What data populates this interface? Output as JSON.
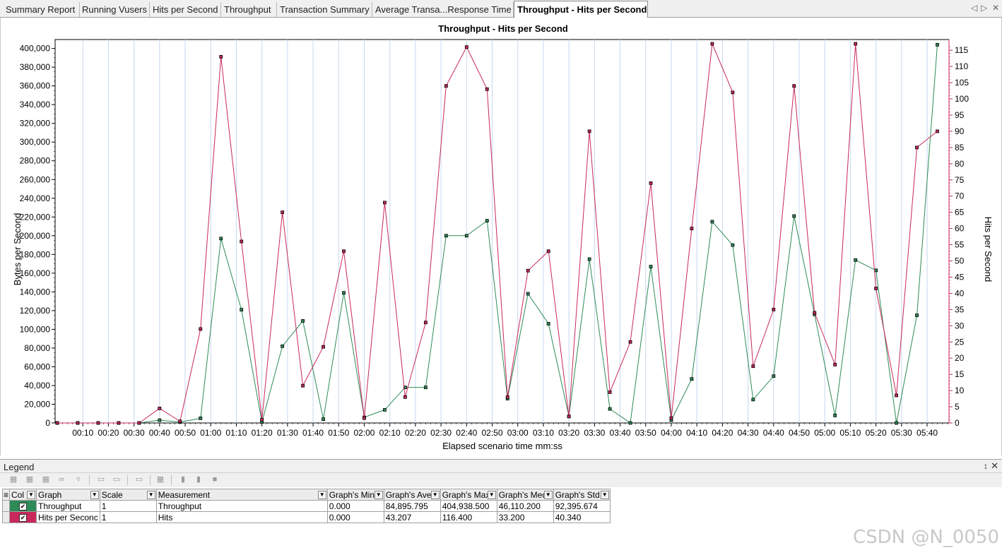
{
  "tabs": [
    {
      "label": "Summary Report"
    },
    {
      "label": "Running Vusers"
    },
    {
      "label": "Hits per Second"
    },
    {
      "label": "Throughput"
    },
    {
      "label": "Transaction Summary"
    },
    {
      "label": "Average Transa...Response Time"
    },
    {
      "label": "Throughput - Hits per Second",
      "active": true
    }
  ],
  "chart_data": {
    "type": "line",
    "title": "Throughput - Hits per Second",
    "xlabel": "Elapsed scenario time mm:ss",
    "ylabel": "Bytes per Second",
    "y2label": "Hits per Second",
    "ylim": [
      0,
      405000
    ],
    "y2lim": [
      0,
      117
    ],
    "x_ticks": [
      "00:10",
      "00:20",
      "00:30",
      "00:40",
      "00:50",
      "01:00",
      "01:10",
      "01:20",
      "01:30",
      "01:40",
      "01:50",
      "02:00",
      "02:10",
      "02:20",
      "02:30",
      "02:40",
      "02:50",
      "03:00",
      "03:10",
      "03:20",
      "03:30",
      "03:40",
      "03:50",
      "04:00",
      "04:10",
      "04:20",
      "04:30",
      "04:40",
      "04:50",
      "05:00",
      "05:10",
      "05:20",
      "05:30",
      "05:40"
    ],
    "y_ticks": [
      "0",
      "20,000",
      "40,000",
      "60,000",
      "80,000",
      "100,000",
      "120,000",
      "140,000",
      "160,000",
      "180,000",
      "200,000",
      "220,000",
      "240,000",
      "260,000",
      "280,000",
      "300,000",
      "320,000",
      "340,000",
      "360,000",
      "380,000",
      "400,000"
    ],
    "y2_ticks": [
      "0",
      "5",
      "10",
      "15",
      "20",
      "25",
      "30",
      "35",
      "40",
      "45",
      "50",
      "55",
      "60",
      "65",
      "70",
      "75",
      "80",
      "85",
      "90",
      "95",
      "100",
      "105",
      "110",
      "115"
    ],
    "grid": true,
    "series": [
      {
        "name": "Throughput",
        "axis": "left",
        "color": "#2e8b57",
        "x": [
          "00:00",
          "00:08",
          "00:16",
          "00:24",
          "00:32",
          "00:40",
          "00:48",
          "00:56",
          "01:04",
          "01:12",
          "01:20",
          "01:28",
          "01:36",
          "01:44",
          "01:52",
          "02:00",
          "02:08",
          "02:16",
          "02:24",
          "02:32",
          "02:40",
          "02:48",
          "02:56",
          "03:04",
          "03:12",
          "03:20",
          "03:28",
          "03:36",
          "03:44",
          "03:52",
          "04:00",
          "04:08",
          "04:16",
          "04:24",
          "04:32",
          "04:40",
          "04:48",
          "04:56",
          "05:04",
          "05:12",
          "05:20",
          "05:28",
          "05:36",
          "05:44"
        ],
        "values": [
          0,
          0,
          0,
          0,
          0,
          3000,
          1000,
          5000,
          197000,
          121000,
          1000,
          82000,
          109000,
          4000,
          139000,
          6000,
          14000,
          38000,
          38000,
          200000,
          200000,
          216000,
          26000,
          138000,
          106000,
          7000,
          175000,
          15000,
          0,
          167000,
          3000,
          47000,
          215000,
          190000,
          25000,
          50000,
          221000,
          116000,
          8000,
          174000,
          163000,
          0,
          115000,
          404000
        ]
      },
      {
        "name": "Hits per Second",
        "axis": "right",
        "color": "#c8285a",
        "x": [
          "00:00",
          "00:08",
          "00:16",
          "00:24",
          "00:32",
          "00:40",
          "00:48",
          "00:56",
          "01:04",
          "01:12",
          "01:20",
          "01:28",
          "01:36",
          "01:44",
          "01:52",
          "02:00",
          "02:08",
          "02:16",
          "02:24",
          "02:32",
          "02:40",
          "02:48",
          "02:56",
          "03:04",
          "03:12",
          "03:20",
          "03:28",
          "03:36",
          "03:44",
          "03:52",
          "04:00",
          "04:08",
          "04:16",
          "04:24",
          "04:32",
          "04:40",
          "04:48",
          "04:56",
          "05:04",
          "05:12",
          "05:20",
          "05:28",
          "05:36",
          "05:44"
        ],
        "values": [
          0,
          0,
          0,
          0,
          0,
          4.5,
          0.5,
          29,
          113,
          56,
          1,
          65,
          11.5,
          23.5,
          53,
          1.5,
          68,
          8,
          31,
          104,
          116,
          103,
          8,
          47,
          53,
          2,
          90,
          9.5,
          25,
          74,
          1.5,
          60,
          117,
          102,
          17.5,
          35,
          104,
          34,
          18,
          117,
          41.5,
          8.5,
          85,
          90
        ]
      }
    ]
  },
  "legend": {
    "title": "Legend",
    "pin": "↕",
    "close": "✕",
    "columns": [
      "Col",
      "Graph",
      "Scale",
      "Measurement",
      "Graph's Mini",
      "Graph's Ave",
      "Graph's Max",
      "Graph's Med",
      "Graph's Std."
    ],
    "rows": [
      {
        "color": "#2e8b57",
        "checked": "✔",
        "graph": "Throughput",
        "scale": "1",
        "measurement": "Throughput",
        "min": "0.000",
        "avg": "84,895.795",
        "max": "404,938.500",
        "med": "46,110.200",
        "std": "92,395.674"
      },
      {
        "color": "#c8285a",
        "checked": "✔",
        "graph": "Hits per Seconc",
        "scale": "1",
        "measurement": "Hits",
        "min": "0.000",
        "avg": "43.207",
        "max": "116.400",
        "med": "33.200",
        "std": "40.340"
      }
    ]
  },
  "watermark": "CSDN @N_0050"
}
